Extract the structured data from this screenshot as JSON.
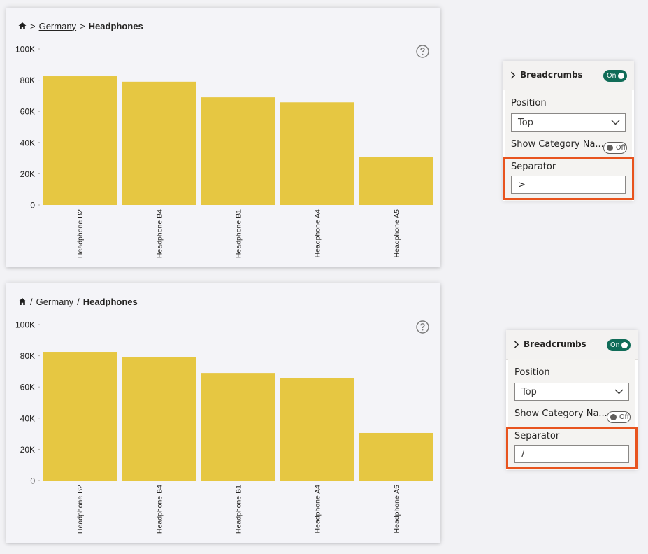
{
  "colors": {
    "bar": "#e6c742",
    "toggle_on": "#106c58",
    "highlight": "#e8541e"
  },
  "icons": [
    "home-icon",
    "help-icon",
    "chevron-right-icon",
    "chevron-down-icon"
  ],
  "visuals": [
    {
      "breadcrumb": {
        "separator": ">",
        "link": "Germany",
        "current": "Headphones"
      },
      "chart_data": {
        "type": "bar",
        "categories": [
          "Headphone B2",
          "Headphone B4",
          "Headphone B1",
          "Headphone A4",
          "Headphone A5"
        ],
        "values": [
          82500,
          79000,
          69000,
          65800,
          30500
        ],
        "ylim": [
          0,
          100000
        ],
        "ytick_values": [
          0,
          20000,
          40000,
          60000,
          80000,
          100000
        ],
        "yticks": [
          "0",
          "20K",
          "40K",
          "60K",
          "80K",
          "100K"
        ],
        "title": "",
        "xlabel": "",
        "ylabel": ""
      }
    },
    {
      "breadcrumb": {
        "separator": "/",
        "link": "Germany",
        "current": "Headphones"
      },
      "chart_data": {
        "type": "bar",
        "categories": [
          "Headphone B2",
          "Headphone B4",
          "Headphone B1",
          "Headphone A4",
          "Headphone A5"
        ],
        "values": [
          82500,
          79000,
          69000,
          65800,
          30500
        ],
        "ylim": [
          0,
          100000
        ],
        "ytick_values": [
          0,
          20000,
          40000,
          60000,
          80000,
          100000
        ],
        "yticks": [
          "0",
          "20K",
          "40K",
          "60K",
          "80K",
          "100K"
        ],
        "title": "",
        "xlabel": "",
        "ylabel": ""
      }
    }
  ],
  "panes": [
    {
      "title": "Breadcrumbs",
      "toggle": "On",
      "position_label": "Position",
      "position_value": "Top",
      "show_category_label": "Show Category Na...",
      "show_category_toggle": "Off",
      "separator_label": "Separator",
      "separator_value": ">"
    },
    {
      "title": "Breadcrumbs",
      "toggle": "On",
      "position_label": "Position",
      "position_value": "Top",
      "show_category_label": "Show Category Na...",
      "show_category_toggle": "Off",
      "separator_label": "Separator",
      "separator_value": "/"
    }
  ]
}
